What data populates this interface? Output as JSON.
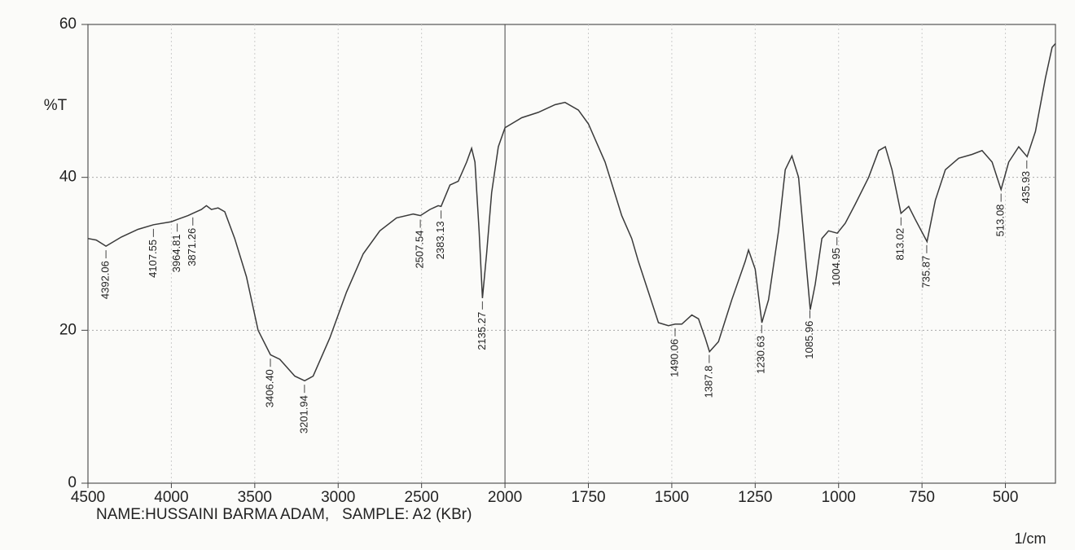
{
  "chart_data": {
    "type": "line",
    "y_label": "%T",
    "x_label": "1/cm",
    "footer": "NAME:HUSSAINI BARMA ADAM,   SAMPLE: A2 (KBr)",
    "xlim": [
      4500,
      350
    ],
    "x_scale_break": 2000,
    "x_scale_break_factor": 2,
    "xticks": [
      4500,
      4000,
      3500,
      3000,
      2500,
      2000,
      1750,
      1500,
      1250,
      1000,
      750,
      500
    ],
    "ylim": [
      0,
      60
    ],
    "yticks": [
      0,
      20,
      40,
      60
    ],
    "grid": true,
    "x": [
      4500,
      4450,
      4392,
      4300,
      4200,
      4107,
      4000,
      3964,
      3900,
      3871,
      3820,
      3790,
      3760,
      3720,
      3680,
      3620,
      3550,
      3480,
      3406,
      3350,
      3260,
      3201,
      3150,
      3050,
      2950,
      2850,
      2750,
      2650,
      2550,
      2507,
      2450,
      2400,
      2383,
      2330,
      2280,
      2230,
      2200,
      2180,
      2155,
      2135,
      2110,
      2080,
      2040,
      2000,
      1950,
      1900,
      1850,
      1820,
      1780,
      1750,
      1700,
      1650,
      1620,
      1600,
      1570,
      1540,
      1510,
      1490,
      1470,
      1440,
      1420,
      1400,
      1387,
      1360,
      1320,
      1280,
      1270,
      1250,
      1230,
      1210,
      1180,
      1160,
      1140,
      1120,
      1100,
      1085,
      1070,
      1050,
      1030,
      1004,
      980,
      950,
      910,
      880,
      860,
      840,
      813,
      790,
      770,
      735,
      710,
      680,
      640,
      600,
      570,
      540,
      513,
      490,
      460,
      435,
      410,
      380,
      360,
      350
    ],
    "series": [
      {
        "name": "A2",
        "color": "#3a3a3a",
        "values": [
          32,
          31.8,
          31,
          32.2,
          33.2,
          33.8,
          34.2,
          34.5,
          35,
          35.3,
          35.8,
          36.3,
          35.8,
          36,
          35.5,
          32,
          27,
          20,
          16.8,
          16.2,
          14,
          13.4,
          14,
          19,
          25,
          30,
          33,
          34.7,
          35.2,
          35,
          35.8,
          36.3,
          36.2,
          39,
          39.5,
          42,
          43.8,
          42,
          33,
          24.2,
          30,
          38,
          44,
          46.5,
          47.8,
          48.5,
          49.5,
          49.8,
          48.8,
          47,
          42,
          35,
          32,
          29,
          25,
          21,
          20.6,
          20.8,
          20.8,
          22,
          21.5,
          19,
          17.2,
          18.5,
          24,
          29,
          30.5,
          28,
          21,
          24,
          33,
          41,
          42.8,
          40,
          30,
          22.7,
          26,
          32,
          33,
          32.7,
          34,
          36.5,
          40,
          43.5,
          44,
          41,
          35.3,
          36.2,
          34.5,
          31.6,
          37,
          41,
          42.5,
          43,
          43.5,
          42,
          38.4,
          42,
          44,
          42.7,
          46,
          53,
          57,
          57.5
        ]
      }
    ],
    "peaks": [
      4392.06,
      4107.55,
      3964.81,
      3871.26,
      {
        "value": 3406.4,
        "label": "3406.40"
      },
      3201.94,
      2507.54,
      2383.13,
      2135.27,
      1490.06,
      1387.8,
      1230.63,
      1085.96,
      1004.95,
      813.02,
      735.87,
      513.08,
      435.93
    ]
  }
}
